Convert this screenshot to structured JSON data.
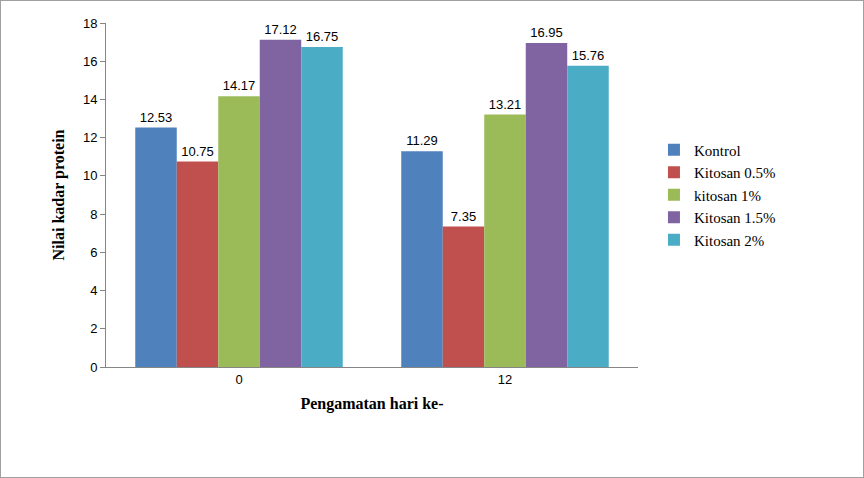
{
  "chart_data": {
    "type": "bar",
    "x_label": "Pengamatan hari ke-",
    "y_label": "Nilai kadar protein",
    "categories": [
      "0",
      "12"
    ],
    "series": [
      {
        "name": "Kontrol",
        "color": "#4F81BD",
        "values": [
          12.53,
          11.29
        ]
      },
      {
        "name": "Kitosan 0.5%",
        "color": "#C0504D",
        "values": [
          10.75,
          7.35
        ]
      },
      {
        "name": "kitosan 1%",
        "color": "#9BBB59",
        "values": [
          14.17,
          13.21
        ]
      },
      {
        "name": "Kitosan 1.5%",
        "color": "#8064A2",
        "values": [
          17.12,
          16.95
        ]
      },
      {
        "name": "Kitosan 2%",
        "color": "#4BACC6",
        "values": [
          16.75,
          15.76
        ]
      }
    ],
    "ylim": [
      0,
      18
    ],
    "yticks": [
      0,
      2,
      4,
      6,
      8,
      10,
      12,
      14,
      16,
      18
    ],
    "grid": false,
    "legend": "right",
    "data_labels": true
  }
}
